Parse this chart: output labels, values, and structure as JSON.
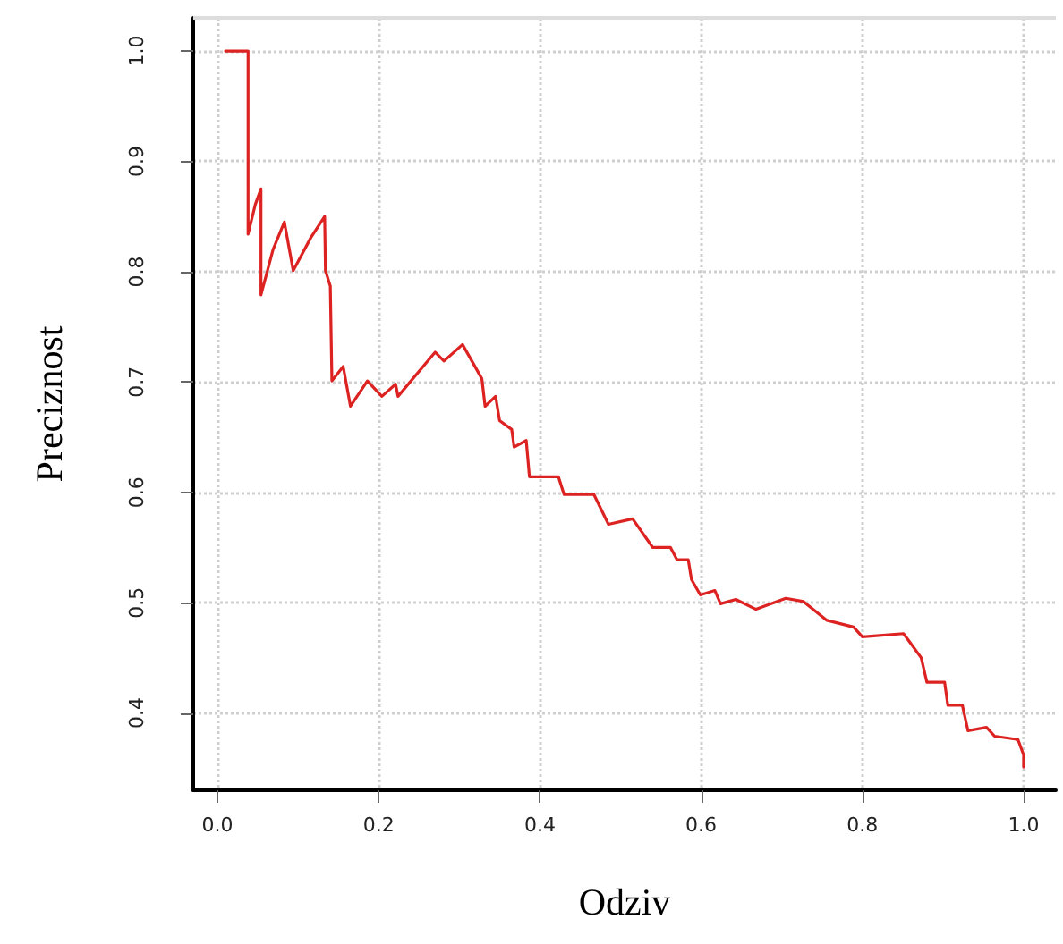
{
  "chart_data": {
    "type": "line",
    "xlabel": "Odziv",
    "ylabel": "Preciznost",
    "xlim": [
      -0.03,
      1.04
    ],
    "ylim": [
      0.33,
      1.03
    ],
    "xticks": [
      {
        "value": 0,
        "label": "0.0"
      },
      0.2,
      0.4,
      0.6,
      0.8,
      {
        "value": 1,
        "label": "1.0"
      }
    ],
    "yticks": [
      0.4,
      0.5,
      0.6,
      0.7,
      0.8,
      0.9,
      {
        "value": 1,
        "label": "1.0"
      }
    ],
    "grid": true,
    "marker": "none",
    "line_style": "solid",
    "series": [
      {
        "color": "#dd2222",
        "x": [
          0.01,
          0.038,
          0.038,
          0.047,
          0.054,
          0.054,
          0.069,
          0.083,
          0.094,
          0.116,
          0.133,
          0.134,
          0.14,
          0.142,
          0.156,
          0.165,
          0.186,
          0.204,
          0.221,
          0.224,
          0.27,
          0.281,
          0.304,
          0.328,
          0.332,
          0.345,
          0.35,
          0.365,
          0.368,
          0.383,
          0.387,
          0.423,
          0.43,
          0.467,
          0.485,
          0.515,
          0.54,
          0.562,
          0.57,
          0.584,
          0.588,
          0.599,
          0.617,
          0.624,
          0.643,
          0.668,
          0.705,
          0.727,
          0.756,
          0.789,
          0.8,
          0.851,
          0.873,
          0.88,
          0.902,
          0.906,
          0.924,
          0.931,
          0.954,
          0.964,
          0.993,
          1.0,
          1.0
        ],
        "values": [
          1.0,
          1.0,
          0.834,
          0.861,
          0.875,
          0.779,
          0.82,
          0.845,
          0.801,
          0.831,
          0.85,
          0.801,
          0.787,
          0.701,
          0.714,
          0.678,
          0.701,
          0.687,
          0.698,
          0.687,
          0.727,
          0.719,
          0.734,
          0.703,
          0.678,
          0.687,
          0.665,
          0.657,
          0.641,
          0.647,
          0.614,
          0.614,
          0.598,
          0.598,
          0.571,
          0.576,
          0.55,
          0.55,
          0.539,
          0.539,
          0.521,
          0.507,
          0.511,
          0.499,
          0.503,
          0.494,
          0.504,
          0.501,
          0.484,
          0.478,
          0.469,
          0.472,
          0.45,
          0.428,
          0.428,
          0.407,
          0.407,
          0.384,
          0.387,
          0.379,
          0.376,
          0.362,
          0.351
        ]
      }
    ]
  }
}
